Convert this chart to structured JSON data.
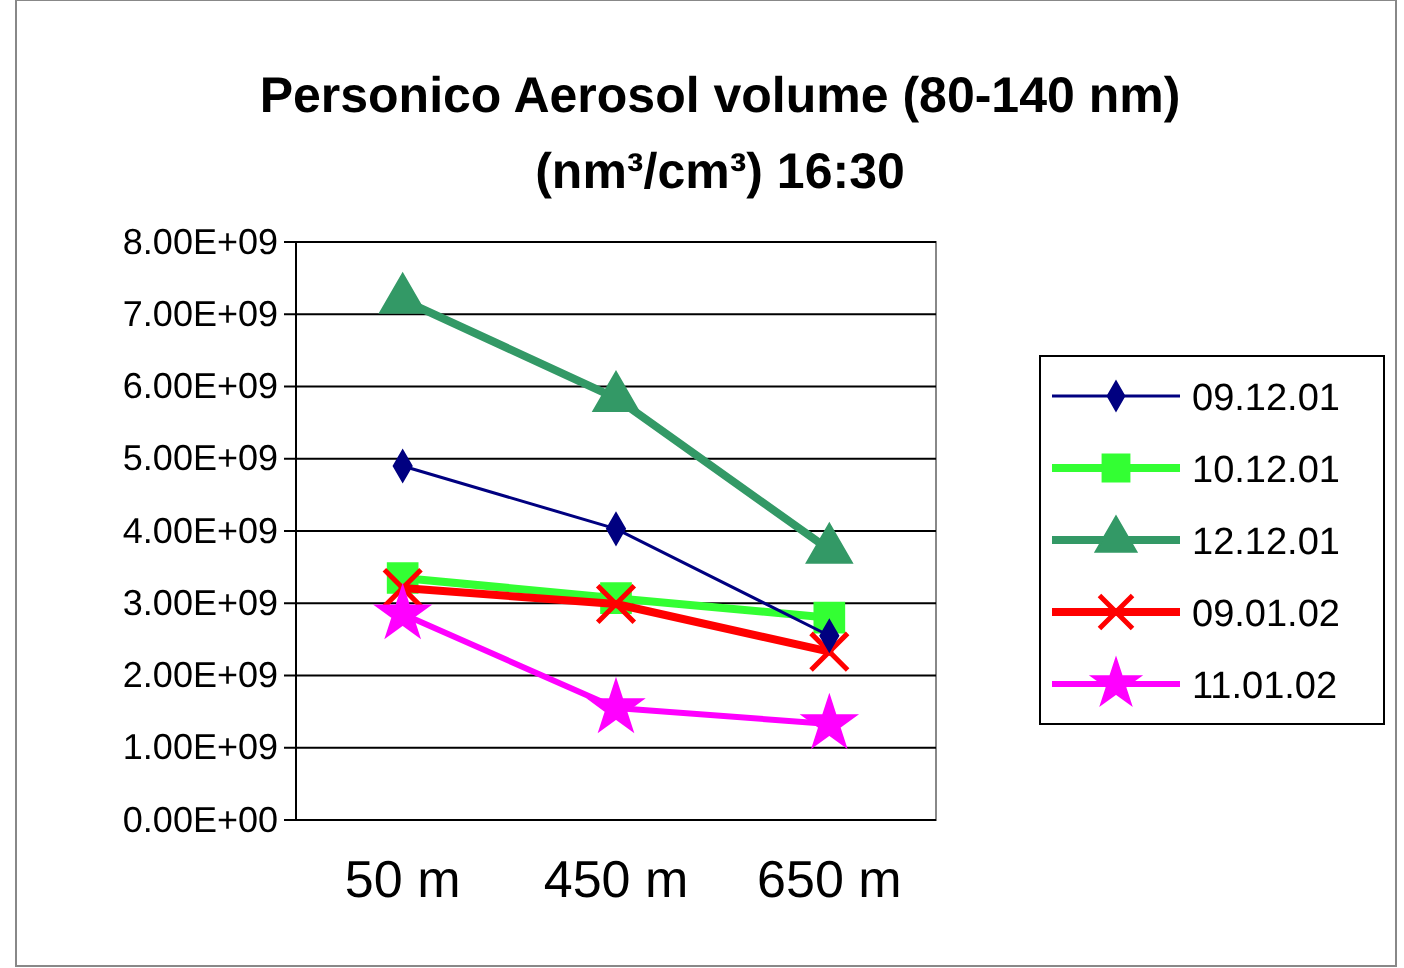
{
  "chart_data": {
    "type": "line",
    "title": "Personico Aerosol volume (80-140 nm)",
    "subtitle": "(nm³/cm³) 16:30",
    "categories": [
      "50 m",
      "450 m",
      "650 m"
    ],
    "series": [
      {
        "name": "09.12.01",
        "color": "#000080",
        "marker": "diamond",
        "values": [
          4900000000.0,
          4030000000.0,
          2550000000.0
        ]
      },
      {
        "name": "10.12.01",
        "color": "#33ff33",
        "marker": "square",
        "values": [
          3350000000.0,
          3070000000.0,
          2800000000.0
        ]
      },
      {
        "name": "12.12.01",
        "color": "#339966",
        "marker": "triangle",
        "values": [
          7200000000.0,
          5840000000.0,
          3740000000.0
        ]
      },
      {
        "name": "09.01.02",
        "color": "#ff0000",
        "marker": "cross",
        "values": [
          3210000000.0,
          2990000000.0,
          2330000000.0
        ]
      },
      {
        "name": "11.01.02",
        "color": "#ff00ff",
        "marker": "star",
        "values": [
          2850000000.0,
          1550000000.0,
          1330000000.0
        ]
      }
    ],
    "ylim": [
      0,
      8000000000.0
    ],
    "yticks": [
      {
        "value": 0,
        "label": "0.00E+00"
      },
      {
        "value": 1000000000.0,
        "label": "1.00E+09"
      },
      {
        "value": 2000000000.0,
        "label": "2.00E+09"
      },
      {
        "value": 3000000000.0,
        "label": "3.00E+09"
      },
      {
        "value": 4000000000.0,
        "label": "4.00E+09"
      },
      {
        "value": 5000000000.0,
        "label": "5.00E+09"
      },
      {
        "value": 6000000000.0,
        "label": "6.00E+09"
      },
      {
        "value": 7000000000.0,
        "label": "7.00E+09"
      },
      {
        "value": 8000000000.0,
        "label": "8.00E+09"
      }
    ],
    "grid": "y",
    "legend": "right"
  }
}
